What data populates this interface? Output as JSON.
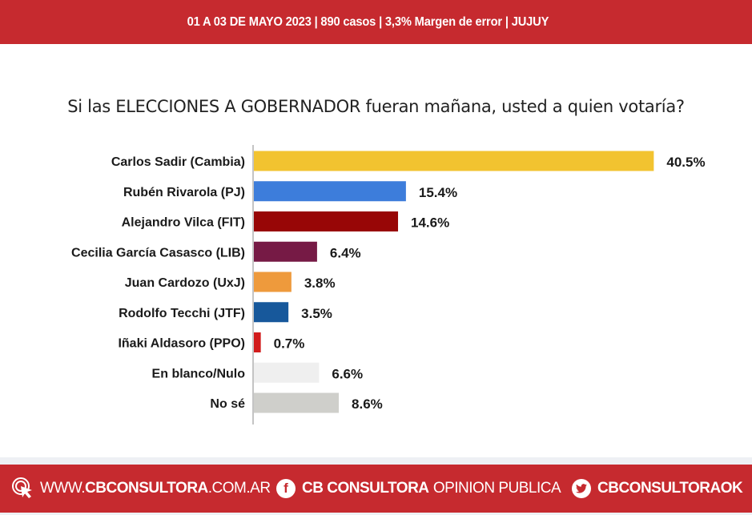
{
  "header": {
    "text": "01 A 03 DE MAYO 2023 | 890 casos  |  3,3% Margen de error  | JUJUY"
  },
  "chart_data": {
    "type": "bar",
    "orientation": "horizontal",
    "title": "Si las ELECCIONES A GOBERNADOR fueran mañana, usted a quien votaría?",
    "categories": [
      "Carlos Sadir (Cambia)",
      "Rubén Rivarola (PJ)",
      "Alejandro Vilca (FIT)",
      "Cecilia García Casasco (LIB)",
      "Juan Cardozo (UxJ)",
      "Rodolfo Tecchi (JTF)",
      "Iñaki Aldasoro (PPO)",
      "En blanco/Nulo",
      "No sé"
    ],
    "values": [
      40.5,
      15.4,
      14.6,
      6.4,
      3.8,
      3.5,
      0.7,
      6.6,
      8.6
    ],
    "labels": [
      "40.5%",
      "15.4%",
      "14.6%",
      "6.4%",
      "3.8%",
      "3.5%",
      "0.7%",
      "6.6%",
      "8.6%"
    ],
    "colors": [
      "#f2c330",
      "#3d7ddb",
      "#980606",
      "#761a45",
      "#ee9a3c",
      "#17589b",
      "#d21c1c",
      "#efefef",
      "#cfcfcb"
    ],
    "grid": false
  },
  "footer": {
    "web_prefix": "WWW.",
    "web_bold": "CBCONSULTORA",
    "web_suffix": ".COM.AR",
    "fb_bold": "CB CONSULTORA",
    "fb_light": "OPINION PUBLICA",
    "tw_bold": "CBCONSULTORAOK",
    "icons": [
      "cursor-click-icon",
      "facebook-icon",
      "twitter-icon"
    ]
  }
}
